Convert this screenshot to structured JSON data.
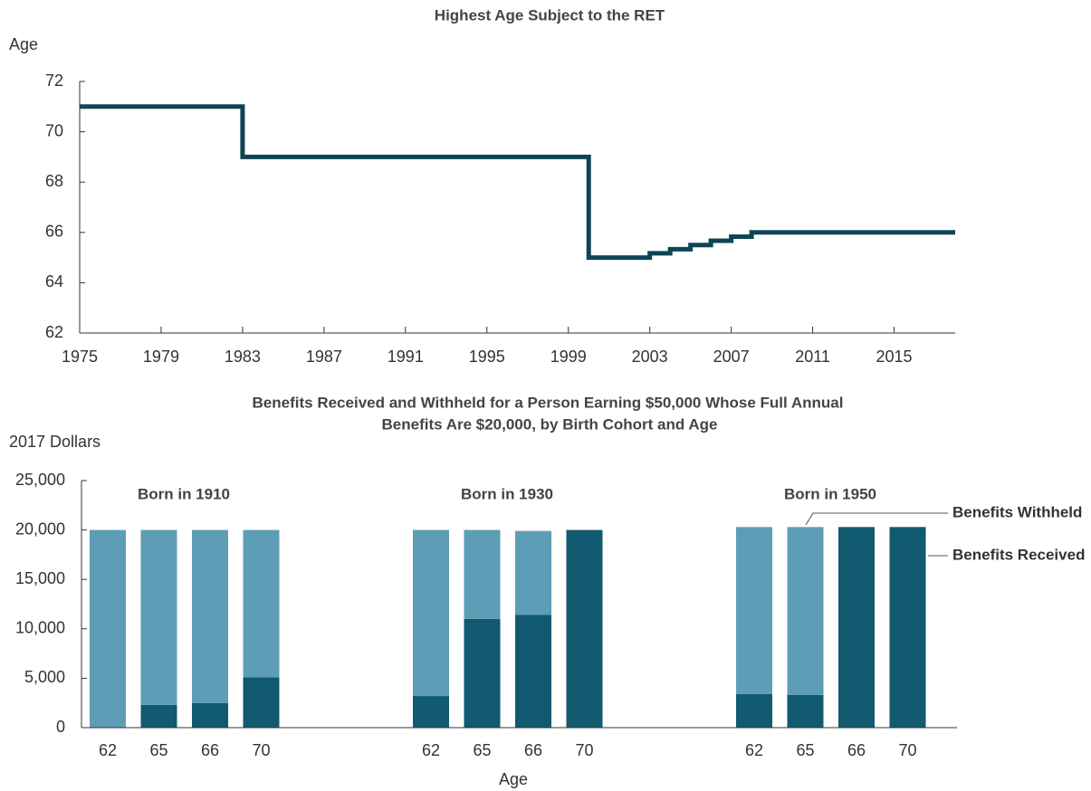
{
  "chart_data": [
    {
      "type": "line",
      "title": "Highest Age Subject to the RET",
      "y_label": "Age",
      "step": "post",
      "x": [
        1975,
        1983,
        2000,
        2003,
        2004,
        2005,
        2006,
        2007,
        2008,
        2018
      ],
      "values": [
        71,
        69,
        65,
        65.17,
        65.33,
        65.5,
        65.67,
        65.83,
        66,
        66
      ],
      "color": "#0d4557",
      "xlim": [
        1975,
        2018
      ],
      "xticks": [
        1975,
        1979,
        1983,
        1987,
        1991,
        1995,
        1999,
        2003,
        2007,
        2011,
        2015
      ],
      "ylim": [
        62,
        72
      ],
      "yticks": [
        62,
        64,
        66,
        68,
        70,
        72
      ]
    },
    {
      "type": "bar",
      "stacked": true,
      "title": [
        "Benefits Received and Withheld for a Person Earning $50,000 Whose Full Annual",
        "Benefits Are $20,000, by Birth Cohort and Age"
      ],
      "y_label": "2017 Dollars",
      "x_label": "Age",
      "groups": [
        "Born in 1910",
        "Born in 1930",
        "Born in 1950"
      ],
      "categories": [
        "62",
        "65",
        "66",
        "70",
        "62",
        "65",
        "66",
        "70",
        "62",
        "65",
        "66",
        "70"
      ],
      "series": [
        {
          "name": "Benefits Received",
          "color": "#115a70",
          "values": [
            0,
            2300,
            2500,
            5100,
            3200,
            11000,
            11400,
            20000,
            3400,
            3300,
            20300,
            20300
          ]
        },
        {
          "name": "Benefits Withheld",
          "color": "#5e9db6",
          "values": [
            20000,
            17700,
            17500,
            14900,
            16800,
            9000,
            8500,
            0,
            16900,
            17000,
            0,
            0
          ]
        }
      ],
      "ylim": [
        0,
        25000
      ],
      "yticks": [
        0,
        {
          "value": 5000,
          "label": "5,000"
        },
        {
          "value": 10000,
          "label": "10,000"
        },
        {
          "value": 15000,
          "label": "15,000"
        },
        {
          "value": 20000,
          "label": "20,000"
        },
        {
          "value": 25000,
          "label": "25,000"
        }
      ]
    }
  ]
}
